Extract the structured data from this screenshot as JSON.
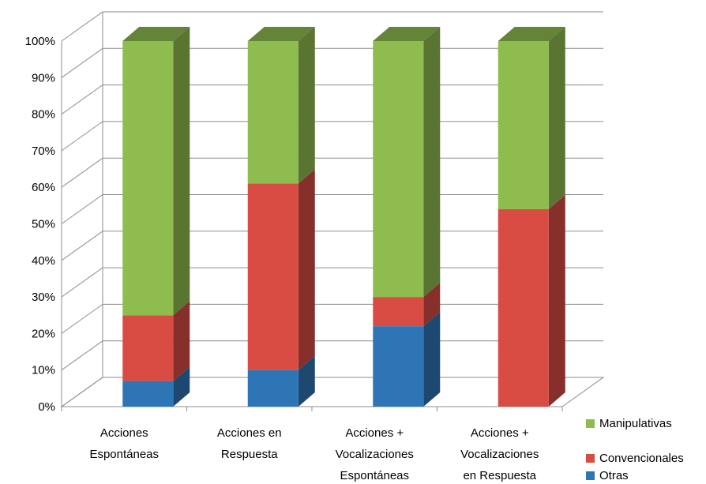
{
  "chart_data": {
    "type": "bar",
    "stacked": true,
    "percent": true,
    "three_d": true,
    "title": "",
    "xlabel": "",
    "ylabel": "",
    "ylim": [
      0,
      100
    ],
    "yticks": [
      "0%",
      "10%",
      "20%",
      "30%",
      "40%",
      "50%",
      "60%",
      "70%",
      "80%",
      "90%",
      "100%"
    ],
    "grid": true,
    "legend_position": "right",
    "categories": [
      [
        "Acciones",
        "Espontáneas"
      ],
      [
        "Acciones en",
        "Respuesta"
      ],
      [
        "Acciones +",
        "Vocalizaciones",
        "Espontáneas"
      ],
      [
        "Acciones +",
        "Vocalizaciones",
        "en Respuesta"
      ]
    ],
    "series": [
      {
        "name": "Otras",
        "values": [
          7,
          10,
          22,
          0
        ],
        "color": "#2e75b6"
      },
      {
        "name": "Convencionales",
        "values": [
          18,
          51,
          8,
          54
        ],
        "color": "#d94c44"
      },
      {
        "name": "Manipulativas",
        "values": [
          75,
          39,
          70,
          46
        ],
        "color": "#8fbc4f"
      }
    ],
    "legend": [
      "Manipulativas",
      "Convencionales",
      "Otras"
    ]
  }
}
